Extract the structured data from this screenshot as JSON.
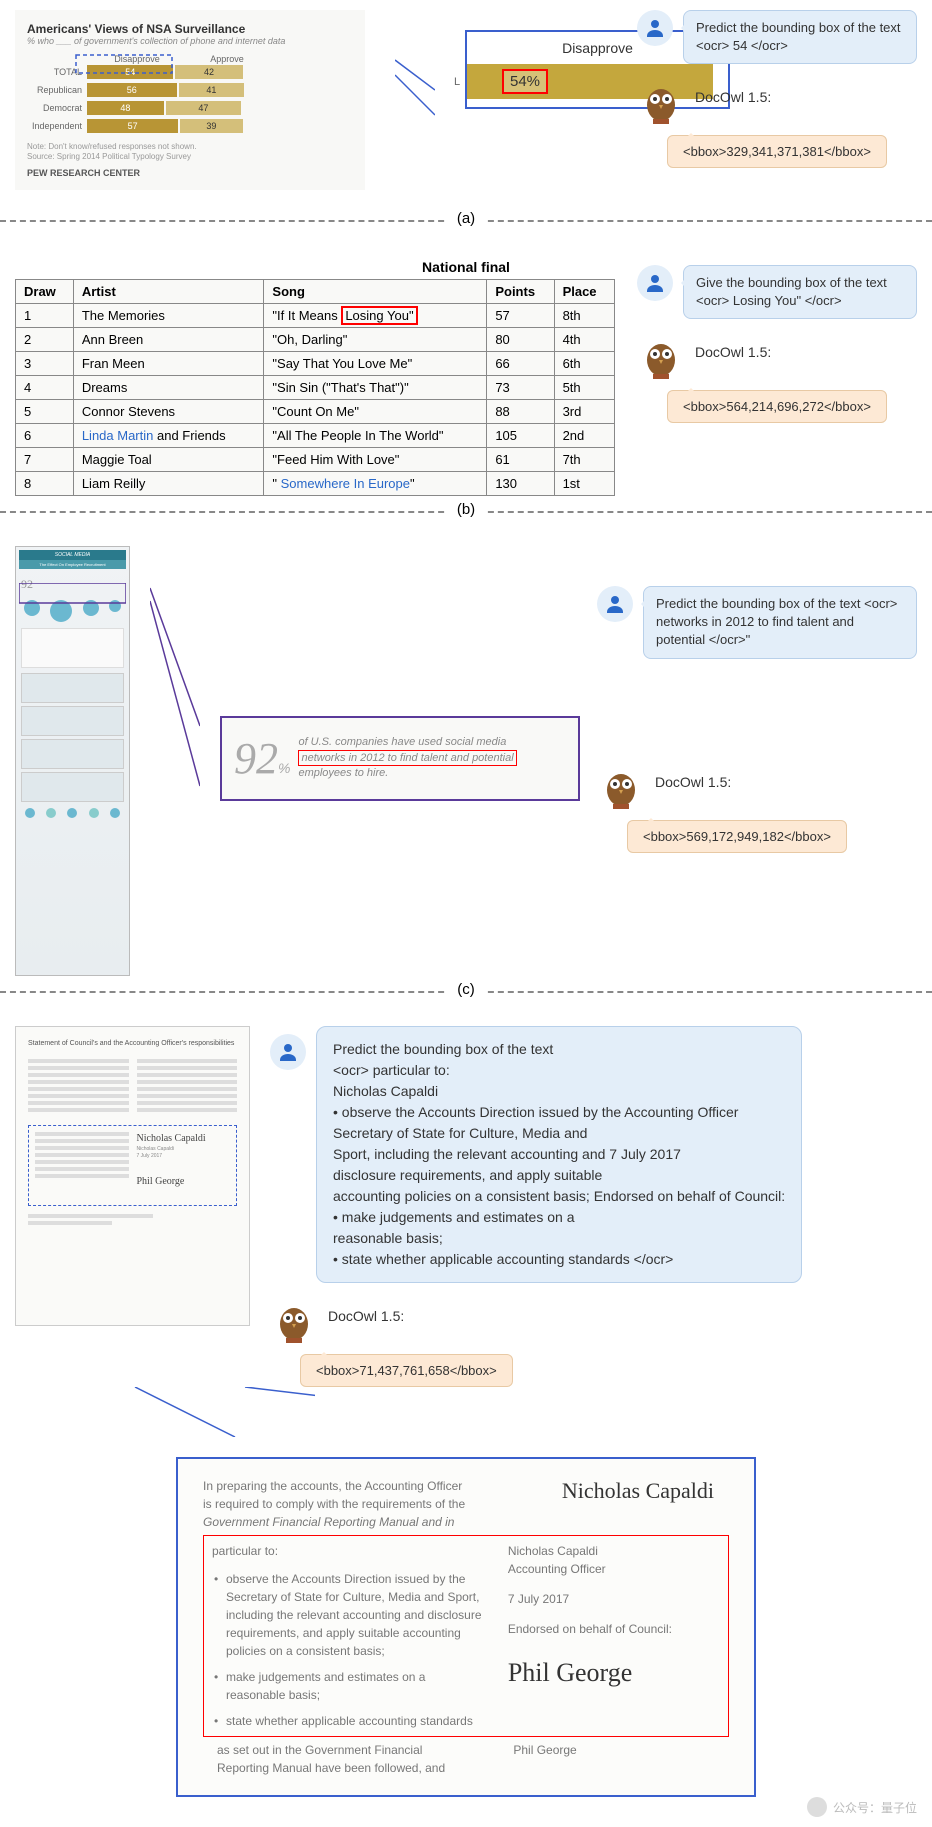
{
  "section_a": {
    "chart": {
      "title": "Americans' Views of NSA Surveillance",
      "subtitle": "% who ___ of government's collection of phone and internet data",
      "cols": [
        "Disapprove",
        "Approve"
      ],
      "rows": [
        {
          "label": "TOTAL",
          "dis": "54",
          "app": "42"
        },
        {
          "label": "Republican",
          "dis": "56",
          "app": "41"
        },
        {
          "label": "Democrat",
          "dis": "48",
          "app": "47"
        },
        {
          "label": "Independent",
          "dis": "57",
          "app": "39"
        }
      ],
      "note": "Note: Don't know/refused responses not shown.\nSource: Spring 2014 Political Typology Survey",
      "footer": "PEW RESEARCH CENTER"
    },
    "zoom": {
      "header": "Disapprove",
      "value": "54%",
      "side": "L"
    },
    "user_prompt": "Predict the bounding box of the text <ocr> 54 </ocr>",
    "owl_label": "DocOwl 1.5:",
    "owl_output": "<bbox>329,341,371,381</bbox>",
    "label": "(a)"
  },
  "section_b": {
    "table": {
      "title": "National final",
      "headers": [
        "Draw",
        "Artist",
        "Song",
        "Points",
        "Place"
      ],
      "rows": [
        [
          "1",
          "The Memories",
          "\"If It Means Losing You\"",
          "57",
          "8th"
        ],
        [
          "2",
          "Ann Breen",
          "\"Oh, Darling\"",
          "80",
          "4th"
        ],
        [
          "3",
          "Fran Meen",
          "\"Say That You Love Me\"",
          "66",
          "6th"
        ],
        [
          "4",
          "Dreams",
          "\"Sin Sin (\"That's That\")\"",
          "73",
          "5th"
        ],
        [
          "5",
          "Connor Stevens",
          "\"Count On Me\"",
          "88",
          "3rd"
        ],
        [
          "6",
          "Linda Martin and Friends",
          "\"All The People In The World\"",
          "105",
          "2nd"
        ],
        [
          "7",
          "Maggie Toal",
          "\"Feed Him With Love\"",
          "61",
          "7th"
        ],
        [
          "8",
          "Liam Reilly",
          "\" Somewhere In Europe\"",
          "130",
          "1st"
        ]
      ],
      "highlight": "Losing You\"",
      "links": {
        "r6_artist": "Linda Martin",
        "r8_song": "Somewhere In Europe"
      }
    },
    "user_prompt": "Give the bounding box of the text <ocr> Losing You\" </ocr>",
    "owl_label": "DocOwl 1.5:",
    "owl_output": "<bbox>564,214,696,272</bbox>",
    "label": "(b)"
  },
  "section_c": {
    "infographic": {
      "header": "SOCIAL MEDIA",
      "sub": "The Effect On Employee Recruitment"
    },
    "zoom": {
      "big": "92",
      "pct": "%",
      "line1": "of U.S. companies have used social media",
      "highlight": "networks in 2012 to find talent and potential",
      "line3": "employees to hire."
    },
    "user_prompt": "Predict the bounding box of the text <ocr> networks in 2012 to find talent and potential </ocr>\"",
    "owl_label": "DocOwl 1.5:",
    "owl_output": "<bbox>569,172,949,182</bbox>",
    "label": "(c)"
  },
  "section_d": {
    "doc_title": "Statement of Council's and the Accounting Officer's responsibilities",
    "user_prompt": "Predict the bounding box of the text\n<ocr> particular to:\nNicholas Capaldi\n• observe the Accounts Direction issued by the Accounting Officer\nSecretary of State for Culture, Media and\nSport, including the relevant accounting and 7 July 2017\ndisclosure requirements, and apply suitable\naccounting policies on a consistent basis; Endorsed on behalf of Council:\n• make judgements and estimates on a\nreasonable basis;\n• state whether applicable accounting standards </ocr>",
    "owl_label": "DocOwl 1.5:",
    "owl_output": "<bbox>71,437,761,658</bbox>",
    "zoom": {
      "intro1": "In preparing the accounts, the Accounting Officer",
      "intro2": "is required to comply with the requirements of the",
      "intro3": "Government Financial Reporting Manual and in",
      "particular": "particular to:",
      "b1": "observe the Accounts Direction issued by the Secretary of State for Culture, Media and Sport, including the relevant accounting and disclosure requirements, and apply suitable accounting policies on a consistent basis;",
      "b2": "make judgements and estimates on a reasonable basis;",
      "b3": "state whether applicable accounting standards",
      "tail1": "as set out in the Government Financial",
      "tail2": "Reporting Manual have been followed, and",
      "sig1": "Nicholas Capaldi",
      "name1": "Nicholas Capaldi",
      "role1": "Accounting Officer",
      "date1": "7 July 2017",
      "endorse": "Endorsed on behalf of Council:",
      "sig2": "Phil George",
      "name2": "Phil George"
    },
    "watermark": "公众号：量子位"
  }
}
